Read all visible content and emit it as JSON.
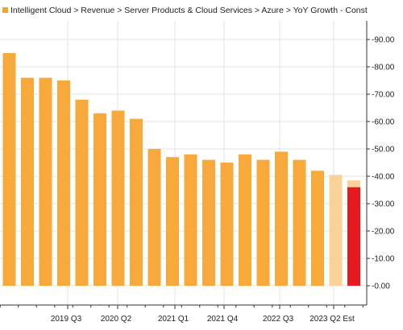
{
  "chart_data": {
    "type": "bar",
    "legend": {
      "label": "Intelligent Cloud > Revenue > Server Products & Cloud Services > Azure > YoY Growth - Const",
      "placement": "top-left",
      "swatch_color": "#F5A623"
    },
    "y_axis": {
      "position": "right",
      "range": [
        0,
        90
      ],
      "ticks": [
        "0.00",
        "10.00",
        "20.00",
        "30.00",
        "40.00",
        "50.00",
        "60.00",
        "70.00",
        "80.00",
        "90.00"
      ],
      "grid": true
    },
    "x_tick_labels": [
      "2019 Q3",
      "2020 Q2",
      "2021 Q1",
      "2021 Q4",
      "2022 Q3",
      "2023 Q2 Est"
    ],
    "bars": [
      {
        "value": 85,
        "color": "#F7A93B"
      },
      {
        "value": 76,
        "color": "#F7A93B"
      },
      {
        "value": 76,
        "color": "#F7A93B"
      },
      {
        "value": 75,
        "color": "#F7A93B"
      },
      {
        "value": 68,
        "color": "#F7A93B"
      },
      {
        "value": 63,
        "color": "#F7A93B"
      },
      {
        "value": 64,
        "color": "#F7A93B"
      },
      {
        "value": 61,
        "color": "#F7A93B"
      },
      {
        "value": 50,
        "color": "#F7A93B"
      },
      {
        "value": 47,
        "color": "#F7A93B"
      },
      {
        "value": 48,
        "color": "#F7A93B"
      },
      {
        "value": 46,
        "color": "#F7A93B"
      },
      {
        "value": 45,
        "color": "#F7A93B"
      },
      {
        "value": 48,
        "color": "#F7A93B"
      },
      {
        "value": 46,
        "color": "#F7A93B"
      },
      {
        "value": 49,
        "color": "#F7A93B"
      },
      {
        "value": 46,
        "color": "#F7A93B"
      },
      {
        "value": 42,
        "color": "#F7A93B"
      },
      {
        "value": 40.5,
        "color": "#F9D29A"
      },
      {
        "value": 38.5,
        "color": "#F9D29A"
      }
    ],
    "overlay_bar": {
      "bar": 19,
      "value": 36,
      "color": "#E8191E"
    },
    "colors": {
      "grid": "#E3E3E3",
      "axis": "#333333",
      "text": "#222222"
    }
  }
}
